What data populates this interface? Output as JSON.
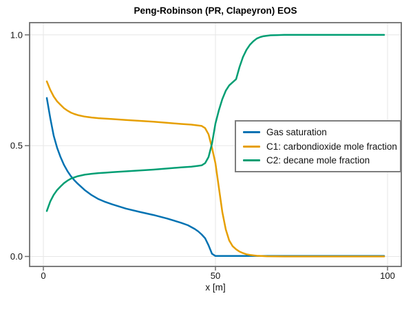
{
  "title": "Peng-Robinson (PR, Clapeyron) EOS",
  "chart_data": {
    "type": "line",
    "title": "Peng-Robinson (PR, Clapeyron) EOS",
    "xlabel": "x [m]",
    "ylabel": "",
    "xlim": [
      -4,
      104
    ],
    "ylim": [
      -0.045,
      1.055
    ],
    "grid": true,
    "grid_color": "#e6e6e6",
    "spine_color": "#6e6e6e",
    "legend_position": "middle-right",
    "x_ticks": [
      {
        "value": 0,
        "label": "0"
      },
      {
        "value": 50,
        "label": "50"
      },
      {
        "value": 100,
        "label": "100"
      }
    ],
    "y_ticks": [
      {
        "value": 0.0,
        "label": "0.0"
      },
      {
        "value": 0.5,
        "label": "0.5"
      },
      {
        "value": 1.0,
        "label": "1.0"
      }
    ],
    "series": [
      {
        "name": "Gas saturation",
        "color": "#0072B2",
        "points": [
          [
            1,
            0.715
          ],
          [
            2,
            0.625
          ],
          [
            3,
            0.545
          ],
          [
            4,
            0.49
          ],
          [
            5,
            0.448
          ],
          [
            6,
            0.413
          ],
          [
            7,
            0.385
          ],
          [
            8,
            0.362
          ],
          [
            9,
            0.344
          ],
          [
            10,
            0.328
          ],
          [
            12,
            0.3
          ],
          [
            14,
            0.277
          ],
          [
            16,
            0.259
          ],
          [
            18,
            0.246
          ],
          [
            20,
            0.235
          ],
          [
            24,
            0.216
          ],
          [
            28,
            0.201
          ],
          [
            32,
            0.187
          ],
          [
            36,
            0.171
          ],
          [
            40,
            0.152
          ],
          [
            42,
            0.141
          ],
          [
            44,
            0.124
          ],
          [
            45,
            0.113
          ],
          [
            46,
            0.099
          ],
          [
            47,
            0.082
          ],
          [
            48,
            0.05
          ],
          [
            49,
            0.012
          ],
          [
            50,
            0.002
          ],
          [
            55,
            0.002
          ],
          [
            60,
            0.002
          ],
          [
            70,
            0.002
          ],
          [
            80,
            0.002
          ],
          [
            90,
            0.002
          ],
          [
            99,
            0.002
          ]
        ]
      },
      {
        "name": "C1: carbondioxide mole fraction",
        "color": "#E69F00",
        "points": [
          [
            1,
            0.79
          ],
          [
            2,
            0.752
          ],
          [
            3,
            0.722
          ],
          [
            4,
            0.7
          ],
          [
            5,
            0.684
          ],
          [
            6,
            0.669
          ],
          [
            7,
            0.658
          ],
          [
            8,
            0.649
          ],
          [
            9,
            0.643
          ],
          [
            10,
            0.638
          ],
          [
            12,
            0.631
          ],
          [
            14,
            0.627
          ],
          [
            16,
            0.624
          ],
          [
            18,
            0.622
          ],
          [
            20,
            0.62
          ],
          [
            24,
            0.616
          ],
          [
            28,
            0.612
          ],
          [
            32,
            0.608
          ],
          [
            36,
            0.603
          ],
          [
            40,
            0.598
          ],
          [
            43,
            0.595
          ],
          [
            45,
            0.591
          ],
          [
            46,
            0.589
          ],
          [
            47,
            0.579
          ],
          [
            48,
            0.551
          ],
          [
            49,
            0.49
          ],
          [
            50,
            0.42
          ],
          [
            51,
            0.31
          ],
          [
            52,
            0.2
          ],
          [
            53,
            0.122
          ],
          [
            54,
            0.072
          ],
          [
            55,
            0.046
          ],
          [
            56,
            0.032
          ],
          [
            57,
            0.022
          ],
          [
            58,
            0.015
          ],
          [
            59,
            0.01
          ],
          [
            60,
            0.007
          ],
          [
            62,
            0.003
          ],
          [
            65,
            0.001
          ],
          [
            70,
            0.0
          ],
          [
            80,
            0.0
          ],
          [
            90,
            0.0
          ],
          [
            99,
            0.0
          ]
        ]
      },
      {
        "name": "C2: decane mole fraction",
        "color": "#009E73",
        "points": [
          [
            1,
            0.205
          ],
          [
            2,
            0.248
          ],
          [
            3,
            0.278
          ],
          [
            4,
            0.3
          ],
          [
            5,
            0.316
          ],
          [
            6,
            0.331
          ],
          [
            7,
            0.342
          ],
          [
            8,
            0.351
          ],
          [
            9,
            0.357
          ],
          [
            10,
            0.362
          ],
          [
            12,
            0.369
          ],
          [
            14,
            0.373
          ],
          [
            16,
            0.376
          ],
          [
            18,
            0.378
          ],
          [
            20,
            0.38
          ],
          [
            24,
            0.384
          ],
          [
            28,
            0.388
          ],
          [
            32,
            0.392
          ],
          [
            36,
            0.397
          ],
          [
            40,
            0.402
          ],
          [
            43,
            0.405
          ],
          [
            45,
            0.409
          ],
          [
            46,
            0.411
          ],
          [
            47,
            0.421
          ],
          [
            48,
            0.449
          ],
          [
            49,
            0.51
          ],
          [
            50,
            0.6
          ],
          [
            51,
            0.66
          ],
          [
            52,
            0.71
          ],
          [
            53,
            0.748
          ],
          [
            54,
            0.772
          ],
          [
            55,
            0.786
          ],
          [
            56,
            0.8
          ],
          [
            57,
            0.855
          ],
          [
            58,
            0.9
          ],
          [
            59,
            0.932
          ],
          [
            60,
            0.955
          ],
          [
            61,
            0.971
          ],
          [
            62,
            0.983
          ],
          [
            63,
            0.99
          ],
          [
            64,
            0.994
          ],
          [
            66,
            0.998
          ],
          [
            68,
            0.999
          ],
          [
            70,
            1.0
          ],
          [
            75,
            1.0
          ],
          [
            80,
            1.0
          ],
          [
            90,
            1.0
          ],
          [
            99,
            1.0
          ]
        ]
      }
    ]
  }
}
